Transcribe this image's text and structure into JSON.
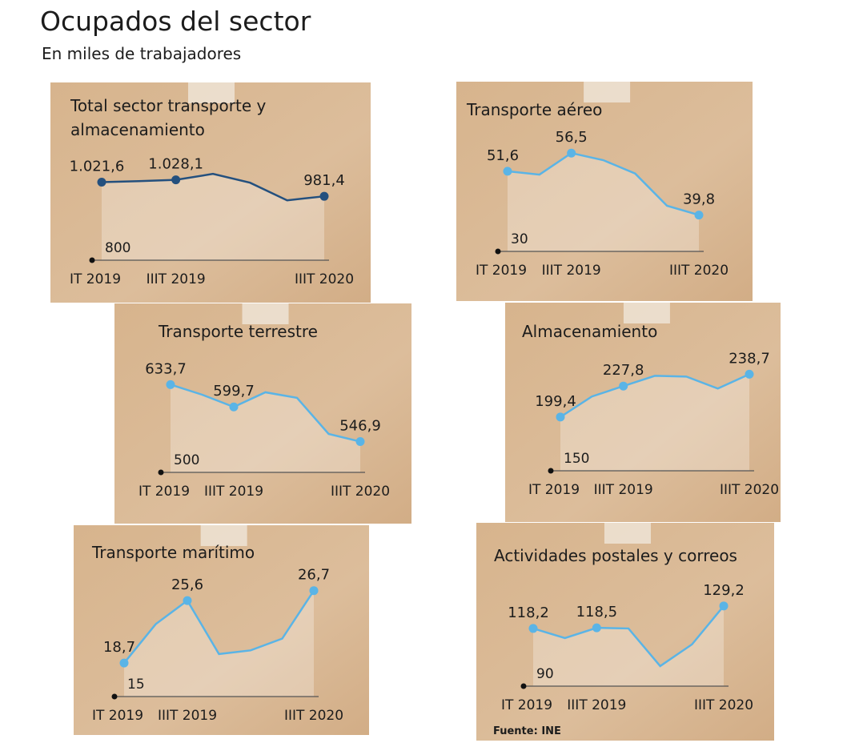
{
  "title": "Ocupados del sector",
  "subtitle": "En miles de trabajadores",
  "source": "Fuente: INE",
  "chart_data": [
    {
      "type": "line",
      "title": "Total sector transporte y almacenamiento",
      "color": "#24507e",
      "categories": [
        "IT 2019",
        null,
        "IIIT 2019",
        null,
        null,
        null,
        "IIIT 2020"
      ],
      "values": [
        1021.6,
        1024.5,
        1028.1,
        1045.0,
        1020.0,
        970.0,
        981.4
      ],
      "value_labels": [
        "1.021,6",
        null,
        "1.028,1",
        null,
        null,
        null,
        "981,4"
      ],
      "ylim": [
        800,
        1100
      ],
      "yticks": [
        800
      ]
    },
    {
      "type": "line",
      "title": "Transporte aéreo",
      "color": "#5ab4e6",
      "categories": [
        "IT 2019",
        null,
        "IIIT 2019",
        null,
        null,
        null,
        "IIIT 2020"
      ],
      "values": [
        51.6,
        50.7,
        56.5,
        54.6,
        51.0,
        42.3,
        39.8
      ],
      "value_labels": [
        "51,6",
        null,
        "56,5",
        null,
        null,
        null,
        "39,8"
      ],
      "ylim": [
        30,
        60
      ],
      "yticks": [
        30
      ]
    },
    {
      "type": "line",
      "title": "Transporte terrestre",
      "color": "#5ab4e6",
      "categories": [
        "IT 2019",
        null,
        "IIIT 2019",
        null,
        null,
        null,
        "IIIT 2020"
      ],
      "values": [
        633.7,
        618.3,
        599.7,
        622.0,
        613.5,
        558.6,
        546.9
      ],
      "value_labels": [
        "633,7",
        null,
        "599,7",
        null,
        null,
        null,
        "546,9"
      ],
      "ylim": [
        500,
        650
      ],
      "yticks": [
        500
      ]
    },
    {
      "type": "line",
      "title": "Almacenamiento",
      "color": "#5ab4e6",
      "categories": [
        "IT 2019",
        null,
        "IIIT 2019",
        null,
        null,
        null,
        "IIIT 2020"
      ],
      "values": [
        199.4,
        218.2,
        227.8,
        237.2,
        236.5,
        225.5,
        238.7
      ],
      "value_labels": [
        "199,4",
        null,
        "227,8",
        null,
        null,
        null,
        "238,7"
      ],
      "ylim": [
        150,
        250
      ],
      "yticks": [
        150
      ]
    },
    {
      "type": "line",
      "title": "Transporte marítimo",
      "color": "#5ab4e6",
      "categories": [
        "IT 2019",
        null,
        "IIIT 2019",
        null,
        null,
        null,
        "IIIT 2020"
      ],
      "values": [
        18.7,
        23.0,
        25.6,
        19.7,
        20.1,
        21.4,
        26.7
      ],
      "value_labels": [
        "18,7",
        null,
        "25,6",
        null,
        null,
        null,
        "26,7"
      ],
      "ylim": [
        15,
        28
      ],
      "yticks": [
        15
      ]
    },
    {
      "type": "line",
      "title": "Actividades postales y correos",
      "color": "#5ab4e6",
      "categories": [
        "IT 2019",
        null,
        "IIIT 2019",
        null,
        null,
        null,
        "IIIT 2020"
      ],
      "values": [
        118.2,
        113.5,
        118.5,
        118.2,
        99.8,
        110.4,
        129.2
      ],
      "value_labels": [
        "118,2",
        null,
        "118,5",
        null,
        null,
        null,
        "129,2"
      ],
      "ylim": [
        90,
        135
      ],
      "yticks": [
        90
      ]
    }
  ]
}
